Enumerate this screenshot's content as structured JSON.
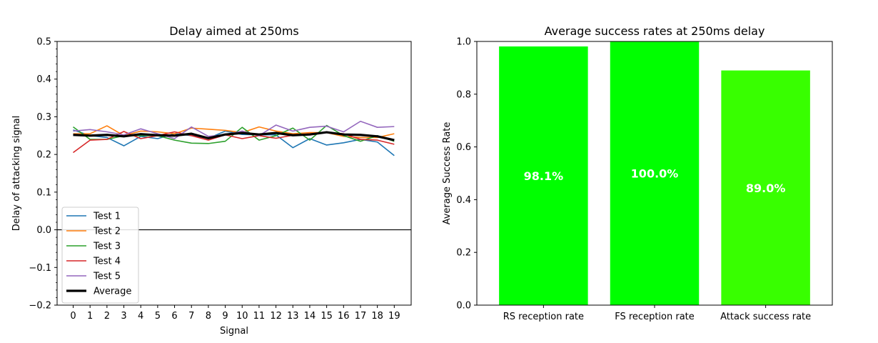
{
  "chart_data": [
    {
      "type": "line",
      "title": "Delay aimed at 250ms",
      "xlabel": "Signal",
      "ylabel": "Delay of attacking signal",
      "xlim": [
        -0.95,
        20.0
      ],
      "ylim": [
        -0.2,
        0.5
      ],
      "x": [
        0,
        1,
        2,
        3,
        4,
        5,
        6,
        7,
        8,
        9,
        10,
        11,
        12,
        13,
        14,
        15,
        16,
        17,
        18,
        19
      ],
      "xticks": [
        "0",
        "1",
        "2",
        "3",
        "4",
        "5",
        "6",
        "7",
        "8",
        "9",
        "10",
        "11",
        "12",
        "13",
        "14",
        "15",
        "16",
        "17",
        "18",
        "19"
      ],
      "yticks": [
        "−0.2",
        "−0.1",
        "0.0",
        "0.1",
        "0.2",
        "0.3",
        "0.4",
        "0.5"
      ],
      "ytick_values": [
        -0.2,
        -0.1,
        0.0,
        0.1,
        0.2,
        0.3,
        0.4,
        0.5
      ],
      "hline": 0.0,
      "legend": "lower-left",
      "series": [
        {
          "name": "Test 1",
          "color": "#1f77b4",
          "width": 1.6,
          "values": [
            0.265,
            0.25,
            0.245,
            0.223,
            0.248,
            0.242,
            0.255,
            0.25,
            0.243,
            0.262,
            0.253,
            0.252,
            0.252,
            0.218,
            0.242,
            0.225,
            0.231,
            0.24,
            0.233,
            0.197
          ]
        },
        {
          "name": "Test 2",
          "color": "#ff7f0e",
          "width": 1.6,
          "values": [
            0.255,
            0.255,
            0.276,
            0.25,
            0.262,
            0.26,
            0.255,
            0.27,
            0.267,
            0.264,
            0.258,
            0.273,
            0.262,
            0.255,
            0.258,
            0.258,
            0.248,
            0.245,
            0.245,
            0.255
          ]
        },
        {
          "name": "Test 3",
          "color": "#2ca02c",
          "width": 1.6,
          "values": [
            0.273,
            0.24,
            0.24,
            0.25,
            0.25,
            0.25,
            0.238,
            0.23,
            0.229,
            0.235,
            0.272,
            0.238,
            0.25,
            0.27,
            0.238,
            0.277,
            0.25,
            0.235,
            0.25,
            0.235
          ]
        },
        {
          "name": "Test 4",
          "color": "#d62728",
          "width": 1.6,
          "values": [
            0.205,
            0.238,
            0.24,
            0.261,
            0.242,
            0.25,
            0.26,
            0.25,
            0.238,
            0.252,
            0.242,
            0.25,
            0.243,
            0.251,
            0.255,
            0.258,
            0.255,
            0.24,
            0.238,
            0.227
          ]
        },
        {
          "name": "Test 5",
          "color": "#9467bd",
          "width": 1.6,
          "values": [
            0.262,
            0.266,
            0.26,
            0.252,
            0.268,
            0.255,
            0.242,
            0.273,
            0.248,
            0.252,
            0.262,
            0.25,
            0.278,
            0.262,
            0.272,
            0.275,
            0.26,
            0.288,
            0.272,
            0.274
          ]
        },
        {
          "name": "Average",
          "color": "#000000",
          "width": 3.2,
          "values": [
            0.252,
            0.25,
            0.252,
            0.248,
            0.254,
            0.251,
            0.25,
            0.255,
            0.243,
            0.253,
            0.257,
            0.253,
            0.257,
            0.251,
            0.253,
            0.259,
            0.253,
            0.252,
            0.248,
            0.238
          ]
        }
      ]
    },
    {
      "type": "bar",
      "title": "Average success rates at 250ms delay",
      "xlabel": "",
      "ylabel": "Average Success Rate",
      "ylim": [
        0.0,
        1.0
      ],
      "yticks": [
        "0.0",
        "0.2",
        "0.4",
        "0.6",
        "0.8",
        "1.0"
      ],
      "ytick_values": [
        0.0,
        0.2,
        0.4,
        0.6,
        0.8,
        1.0
      ],
      "categories": [
        "RS reception rate",
        "FS reception rate",
        "Attack success rate"
      ],
      "values": [
        0.981,
        1.0,
        0.89
      ],
      "labels": [
        "98.1%",
        "100.0%",
        "89.0%"
      ],
      "colors": [
        "#00ff00",
        "#00ff00",
        "#38ff00"
      ]
    }
  ]
}
